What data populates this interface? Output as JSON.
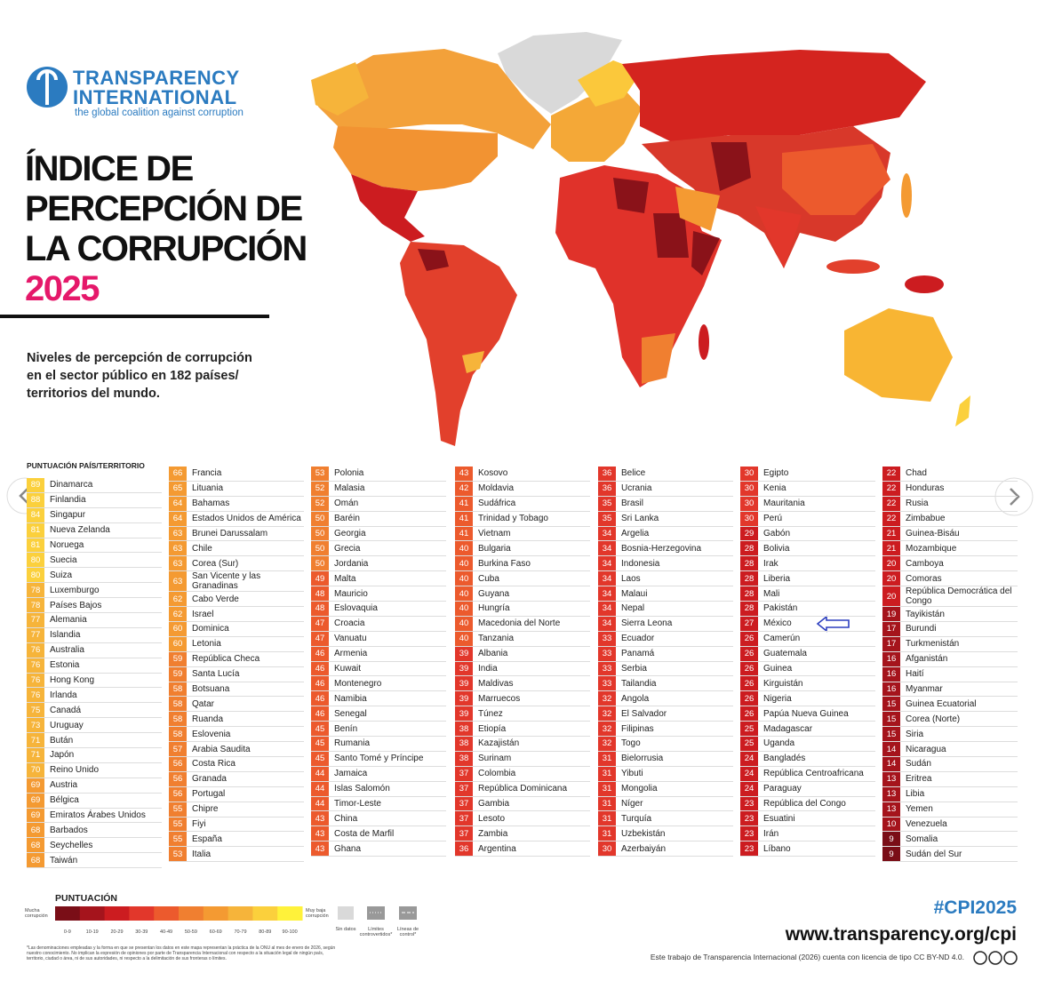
{
  "header": {
    "logo": {
      "line1": "TRANSPARENCY",
      "line2": "INTERNATIONAL",
      "tagline": "the global coalition against corruption"
    },
    "title_lines": [
      "ÍNDICE DE",
      "PERCEPCIÓN DE",
      "LA CORRUPCIÓN"
    ],
    "year": "2025",
    "subtitle": "Niveles de percepción de corrupción en el sector público en 182 países/ territorios del mundo."
  },
  "table": {
    "header": "PUNTUACIÓN PAÍS/TERRITORIO",
    "columns": [
      [
        [
          89,
          "Dinamarca"
        ],
        [
          88,
          "Finlandia"
        ],
        [
          84,
          "Singapur"
        ],
        [
          81,
          "Nueva Zelanda"
        ],
        [
          81,
          "Noruega"
        ],
        [
          80,
          "Suecia"
        ],
        [
          80,
          "Suiza"
        ],
        [
          78,
          "Luxemburgo"
        ],
        [
          78,
          "Países Bajos"
        ],
        [
          77,
          "Alemania"
        ],
        [
          77,
          "Islandia"
        ],
        [
          76,
          "Australia"
        ],
        [
          76,
          "Estonia"
        ],
        [
          76,
          "Hong Kong"
        ],
        [
          76,
          "Irlanda"
        ],
        [
          75,
          "Canadá"
        ],
        [
          73,
          "Uruguay"
        ],
        [
          71,
          "Bután"
        ],
        [
          71,
          "Japón"
        ],
        [
          70,
          "Reino Unido"
        ],
        [
          69,
          "Austria"
        ],
        [
          69,
          "Bélgica"
        ],
        [
          69,
          "Emiratos Árabes Unidos"
        ],
        [
          68,
          "Barbados"
        ],
        [
          68,
          "Seychelles"
        ],
        [
          68,
          "Taiwán"
        ]
      ],
      [
        [
          66,
          "Francia"
        ],
        [
          65,
          "Lituania"
        ],
        [
          64,
          "Bahamas"
        ],
        [
          64,
          "Estados Unidos de América"
        ],
        [
          63,
          "Brunei Darussalam"
        ],
        [
          63,
          "Chile"
        ],
        [
          63,
          "Corea (Sur)"
        ],
        [
          63,
          "San Vicente y las Granadinas"
        ],
        [
          62,
          "Cabo Verde"
        ],
        [
          62,
          "Israel"
        ],
        [
          60,
          "Dominica"
        ],
        [
          60,
          "Letonia"
        ],
        [
          59,
          "República Checa"
        ],
        [
          59,
          "Santa Lucía"
        ],
        [
          58,
          "Botsuana"
        ],
        [
          58,
          "Qatar"
        ],
        [
          58,
          "Ruanda"
        ],
        [
          58,
          "Eslovenia"
        ],
        [
          57,
          "Arabia Saudita"
        ],
        [
          56,
          "Costa Rica"
        ],
        [
          56,
          "Granada"
        ],
        [
          56,
          "Portugal"
        ],
        [
          55,
          "Chipre"
        ],
        [
          55,
          "Fiyi"
        ],
        [
          55,
          "España"
        ],
        [
          53,
          "Italia"
        ]
      ],
      [
        [
          53,
          "Polonia"
        ],
        [
          52,
          "Malasia"
        ],
        [
          52,
          "Omán"
        ],
        [
          50,
          "Baréin"
        ],
        [
          50,
          "Georgia"
        ],
        [
          50,
          "Grecia"
        ],
        [
          50,
          "Jordania"
        ],
        [
          49,
          "Malta"
        ],
        [
          48,
          "Mauricio"
        ],
        [
          48,
          "Eslovaquia"
        ],
        [
          47,
          "Croacia"
        ],
        [
          47,
          "Vanuatu"
        ],
        [
          46,
          "Armenia"
        ],
        [
          46,
          "Kuwait"
        ],
        [
          46,
          "Montenegro"
        ],
        [
          46,
          "Namibia"
        ],
        [
          46,
          "Senegal"
        ],
        [
          45,
          "Benín"
        ],
        [
          45,
          "Rumania"
        ],
        [
          45,
          "Santo Tomé y Príncipe"
        ],
        [
          44,
          "Jamaica"
        ],
        [
          44,
          "Islas Salomón"
        ],
        [
          44,
          "Timor-Leste"
        ],
        [
          43,
          "China"
        ],
        [
          43,
          "Costa de Marfil"
        ],
        [
          43,
          "Ghana"
        ]
      ],
      [
        [
          43,
          "Kosovo"
        ],
        [
          42,
          "Moldavia"
        ],
        [
          41,
          "Sudáfrica"
        ],
        [
          41,
          "Trinidad y Tobago"
        ],
        [
          41,
          "Vietnam"
        ],
        [
          40,
          "Bulgaria"
        ],
        [
          40,
          "Burkina Faso"
        ],
        [
          40,
          "Cuba"
        ],
        [
          40,
          "Guyana"
        ],
        [
          40,
          "Hungría"
        ],
        [
          40,
          "Macedonia del Norte"
        ],
        [
          40,
          "Tanzania"
        ],
        [
          39,
          "Albania"
        ],
        [
          39,
          "India"
        ],
        [
          39,
          "Maldivas"
        ],
        [
          39,
          "Marruecos"
        ],
        [
          39,
          "Túnez"
        ],
        [
          38,
          "Etiopía"
        ],
        [
          38,
          "Kazajistán"
        ],
        [
          38,
          "Surinam"
        ],
        [
          37,
          "Colombia"
        ],
        [
          37,
          "República Dominicana"
        ],
        [
          37,
          "Gambia"
        ],
        [
          37,
          "Lesoto"
        ],
        [
          37,
          "Zambia"
        ],
        [
          36,
          "Argentina"
        ]
      ],
      [
        [
          36,
          "Belice"
        ],
        [
          36,
          "Ucrania"
        ],
        [
          35,
          "Brasil"
        ],
        [
          35,
          "Sri Lanka"
        ],
        [
          34,
          "Argelia"
        ],
        [
          34,
          "Bosnia-Herzegovina"
        ],
        [
          34,
          "Indonesia"
        ],
        [
          34,
          "Laos"
        ],
        [
          34,
          "Malaui"
        ],
        [
          34,
          "Nepal"
        ],
        [
          34,
          "Sierra Leona"
        ],
        [
          33,
          "Ecuador"
        ],
        [
          33,
          "Panamá"
        ],
        [
          33,
          "Serbia"
        ],
        [
          33,
          "Tailandia"
        ],
        [
          32,
          "Angola"
        ],
        [
          32,
          "El Salvador"
        ],
        [
          32,
          "Filipinas"
        ],
        [
          32,
          "Togo"
        ],
        [
          31,
          "Bielorrusia"
        ],
        [
          31,
          "Yibuti"
        ],
        [
          31,
          "Mongolia"
        ],
        [
          31,
          "Níger"
        ],
        [
          31,
          "Turquía"
        ],
        [
          31,
          "Uzbekistán"
        ],
        [
          30,
          "Azerbaiyán"
        ]
      ],
      [
        [
          30,
          "Egipto"
        ],
        [
          30,
          "Kenia"
        ],
        [
          30,
          "Mauritania"
        ],
        [
          30,
          "Perú"
        ],
        [
          29,
          "Gabón"
        ],
        [
          28,
          "Bolivia"
        ],
        [
          28,
          "Irak"
        ],
        [
          28,
          "Liberia"
        ],
        [
          28,
          "Mali"
        ],
        [
          28,
          "Pakistán"
        ],
        [
          27,
          "México"
        ],
        [
          26,
          "Camerún"
        ],
        [
          26,
          "Guatemala"
        ],
        [
          26,
          "Guinea"
        ],
        [
          26,
          "Kirguistán"
        ],
        [
          26,
          "Nigeria"
        ],
        [
          26,
          "Papúa Nueva Guinea"
        ],
        [
          25,
          "Madagascar"
        ],
        [
          25,
          "Uganda"
        ],
        [
          24,
          "Bangladés"
        ],
        [
          24,
          "República Centroafricana"
        ],
        [
          24,
          "Paraguay"
        ],
        [
          23,
          "República del Congo"
        ],
        [
          23,
          "Esuatini"
        ],
        [
          23,
          "Irán"
        ],
        [
          23,
          "Líbano"
        ]
      ],
      [
        [
          22,
          "Chad"
        ],
        [
          22,
          "Honduras"
        ],
        [
          22,
          "Rusia"
        ],
        [
          22,
          "Zimbabue"
        ],
        [
          21,
          "Guinea-Bisáu"
        ],
        [
          21,
          "Mozambique"
        ],
        [
          20,
          "Camboya"
        ],
        [
          20,
          "Comoras"
        ],
        [
          20,
          "República Democrática del Congo"
        ],
        [
          19,
          "Tayikistán"
        ],
        [
          17,
          "Burundi"
        ],
        [
          17,
          "Turkmenistán"
        ],
        [
          16,
          "Afganistán"
        ],
        [
          16,
          "Haití"
        ],
        [
          16,
          "Myanmar"
        ],
        [
          15,
          "Guinea Ecuatorial"
        ],
        [
          15,
          "Corea (Norte)"
        ],
        [
          15,
          "Siria"
        ],
        [
          14,
          "Nicaragua"
        ],
        [
          14,
          "Sudán"
        ],
        [
          13,
          "Eritrea"
        ],
        [
          13,
          "Libia"
        ],
        [
          13,
          "Yemen"
        ],
        [
          10,
          "Venezuela"
        ],
        [
          9,
          "Somalia"
        ],
        [
          9,
          "Sudán del Sur"
        ]
      ]
    ]
  },
  "legend": {
    "title": "PUNTUACIÓN",
    "low": "Mucha corrupción",
    "high": "Muy baja corrupción",
    "bands": [
      {
        "label": "0-9",
        "color": "#7a0e17"
      },
      {
        "label": "10-19",
        "color": "#a5141c"
      },
      {
        "label": "20-29",
        "color": "#cc1c20"
      },
      {
        "label": "30-39",
        "color": "#e2372b"
      },
      {
        "label": "40-49",
        "color": "#ec5a2d"
      },
      {
        "label": "50-59",
        "color": "#f07f30"
      },
      {
        "label": "60-69",
        "color": "#f49a32"
      },
      {
        "label": "70-79",
        "color": "#f6b43a"
      },
      {
        "label": "80-89",
        "color": "#fbd03c"
      },
      {
        "label": "90-100",
        "color": "#fff23a"
      }
    ],
    "no_data": "Sin datos",
    "disputed": "Límites controvertidos*",
    "control": "Líneas de control*",
    "footnote": "*Las denominaciones empleadas y la forma en que se presentan los datos en este mapa representan la práctica de la ONU al mes de enero de 2026, según nuestro conocimiento. No implican la expresión de opiniones por parte de Transparencia Internacional con respecto a la situación legal de ningún país, territorio, ciudad o área, ni de sus autoridades, ni respecto a la delimitación de sus fronteras o límites."
  },
  "footer": {
    "hashtag": "#CPI2025",
    "url": "www.transparency.org/cpi",
    "license": "Este trabajo de Transparencia Internacional (2026) cuenta con licencia de tipo CC BY-ND 4.0."
  }
}
